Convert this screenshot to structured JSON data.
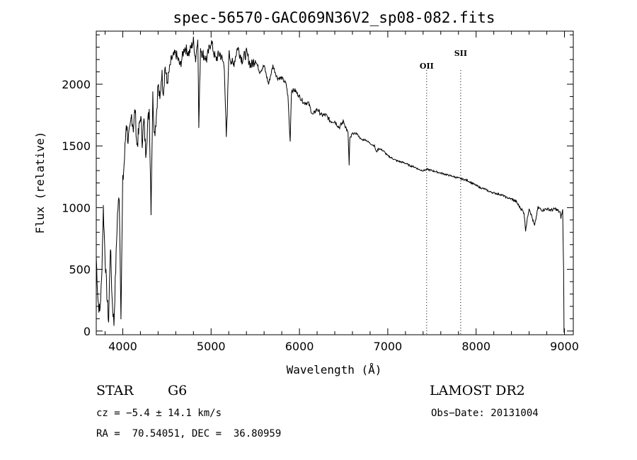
{
  "chart_data": {
    "type": "line",
    "title": "spec-56570-GAC069N36V2_sp08-082.fits",
    "xlabel": "Wavelength (Å)",
    "ylabel": "Flux (relative)",
    "xlim": [
      3700,
      9100
    ],
    "ylim": [
      -30,
      2430
    ],
    "xticks": [
      4000,
      5000,
      6000,
      7000,
      8000,
      9000
    ],
    "yticks": [
      0,
      500,
      1000,
      1500,
      2000
    ],
    "series": [
      {
        "name": "flux",
        "x": [
          3700,
          3720,
          3740,
          3760,
          3780,
          3800,
          3820,
          3840,
          3860,
          3880,
          3900,
          3920,
          3940,
          3960,
          3980,
          4000,
          4020,
          4040,
          4060,
          4080,
          4100,
          4120,
          4140,
          4160,
          4180,
          4200,
          4220,
          4240,
          4260,
          4280,
          4300,
          4320,
          4340,
          4360,
          4380,
          4400,
          4420,
          4440,
          4460,
          4480,
          4500,
          4550,
          4600,
          4650,
          4700,
          4750,
          4800,
          4825,
          4850,
          4861,
          4880,
          4900,
          4950,
          5000,
          5050,
          5100,
          5150,
          5167,
          5172,
          5183,
          5200,
          5250,
          5300,
          5350,
          5400,
          5450,
          5500,
          5550,
          5600,
          5650,
          5700,
          5750,
          5800,
          5850,
          5870,
          5890,
          5895,
          5910,
          5950,
          6000,
          6050,
          6100,
          6150,
          6200,
          6250,
          6300,
          6350,
          6400,
          6450,
          6500,
          6550,
          6563,
          6570,
          6600,
          6650,
          6700,
          6750,
          6800,
          6850,
          6870,
          6900,
          6950,
          7000,
          7050,
          7100,
          7150,
          7200,
          7250,
          7300,
          7350,
          7400,
          7450,
          7500,
          7550,
          7600,
          7650,
          7700,
          7750,
          7800,
          7850,
          7900,
          7950,
          8000,
          8050,
          8100,
          8150,
          8200,
          8250,
          8300,
          8350,
          8400,
          8450,
          8498,
          8542,
          8560,
          8600,
          8662,
          8700,
          8750,
          8800,
          8850,
          8900,
          8950,
          8960,
          8980,
          8990,
          8995,
          9000
        ],
        "values": [
          600,
          250,
          150,
          400,
          1000,
          600,
          300,
          80,
          700,
          250,
          60,
          500,
          950,
          1100,
          150,
          1200,
          1400,
          1700,
          1550,
          1600,
          1750,
          1650,
          1800,
          1500,
          1600,
          1750,
          1550,
          1700,
          1450,
          1650,
          1800,
          1000,
          1900,
          1600,
          1750,
          2000,
          1850,
          2100,
          1950,
          2150,
          2000,
          2200,
          2250,
          2150,
          2300,
          2250,
          2350,
          2200,
          2400,
          1650,
          2300,
          2250,
          2200,
          2350,
          2200,
          2250,
          2150,
          1700,
          1550,
          1750,
          2250,
          2150,
          2300,
          2200,
          2250,
          2150,
          2200,
          2100,
          2150,
          2000,
          2150,
          2050,
          2050,
          2000,
          1900,
          1600,
          1550,
          1950,
          1950,
          1900,
          1850,
          1850,
          1750,
          1800,
          1750,
          1750,
          1700,
          1700,
          1650,
          1700,
          1600,
          1340,
          1550,
          1600,
          1600,
          1550,
          1550,
          1520,
          1500,
          1450,
          1480,
          1460,
          1420,
          1400,
          1380,
          1370,
          1360,
          1340,
          1330,
          1310,
          1300,
          1310,
          1300,
          1290,
          1280,
          1270,
          1260,
          1250,
          1240,
          1230,
          1220,
          1200,
          1180,
          1160,
          1150,
          1130,
          1120,
          1110,
          1100,
          1080,
          1070,
          1050,
          1000,
          960,
          820,
          1000,
          850,
          1000,
          980,
          990,
          980,
          990,
          960,
          920,
          980,
          500,
          0,
          0
        ]
      }
    ],
    "line_markers": [
      {
        "label": "OII",
        "x": 7440
      },
      {
        "label": "SII",
        "x": 7825
      }
    ]
  },
  "info": {
    "object_type": "STAR",
    "subclass": "G6",
    "survey": "LAMOST DR2",
    "cz": "cz = −5.4 ± 14.1 km/s",
    "obs_date": "Obs−Date: 20131004",
    "coords": "RA =  70.54051, DEC =  36.80959"
  }
}
